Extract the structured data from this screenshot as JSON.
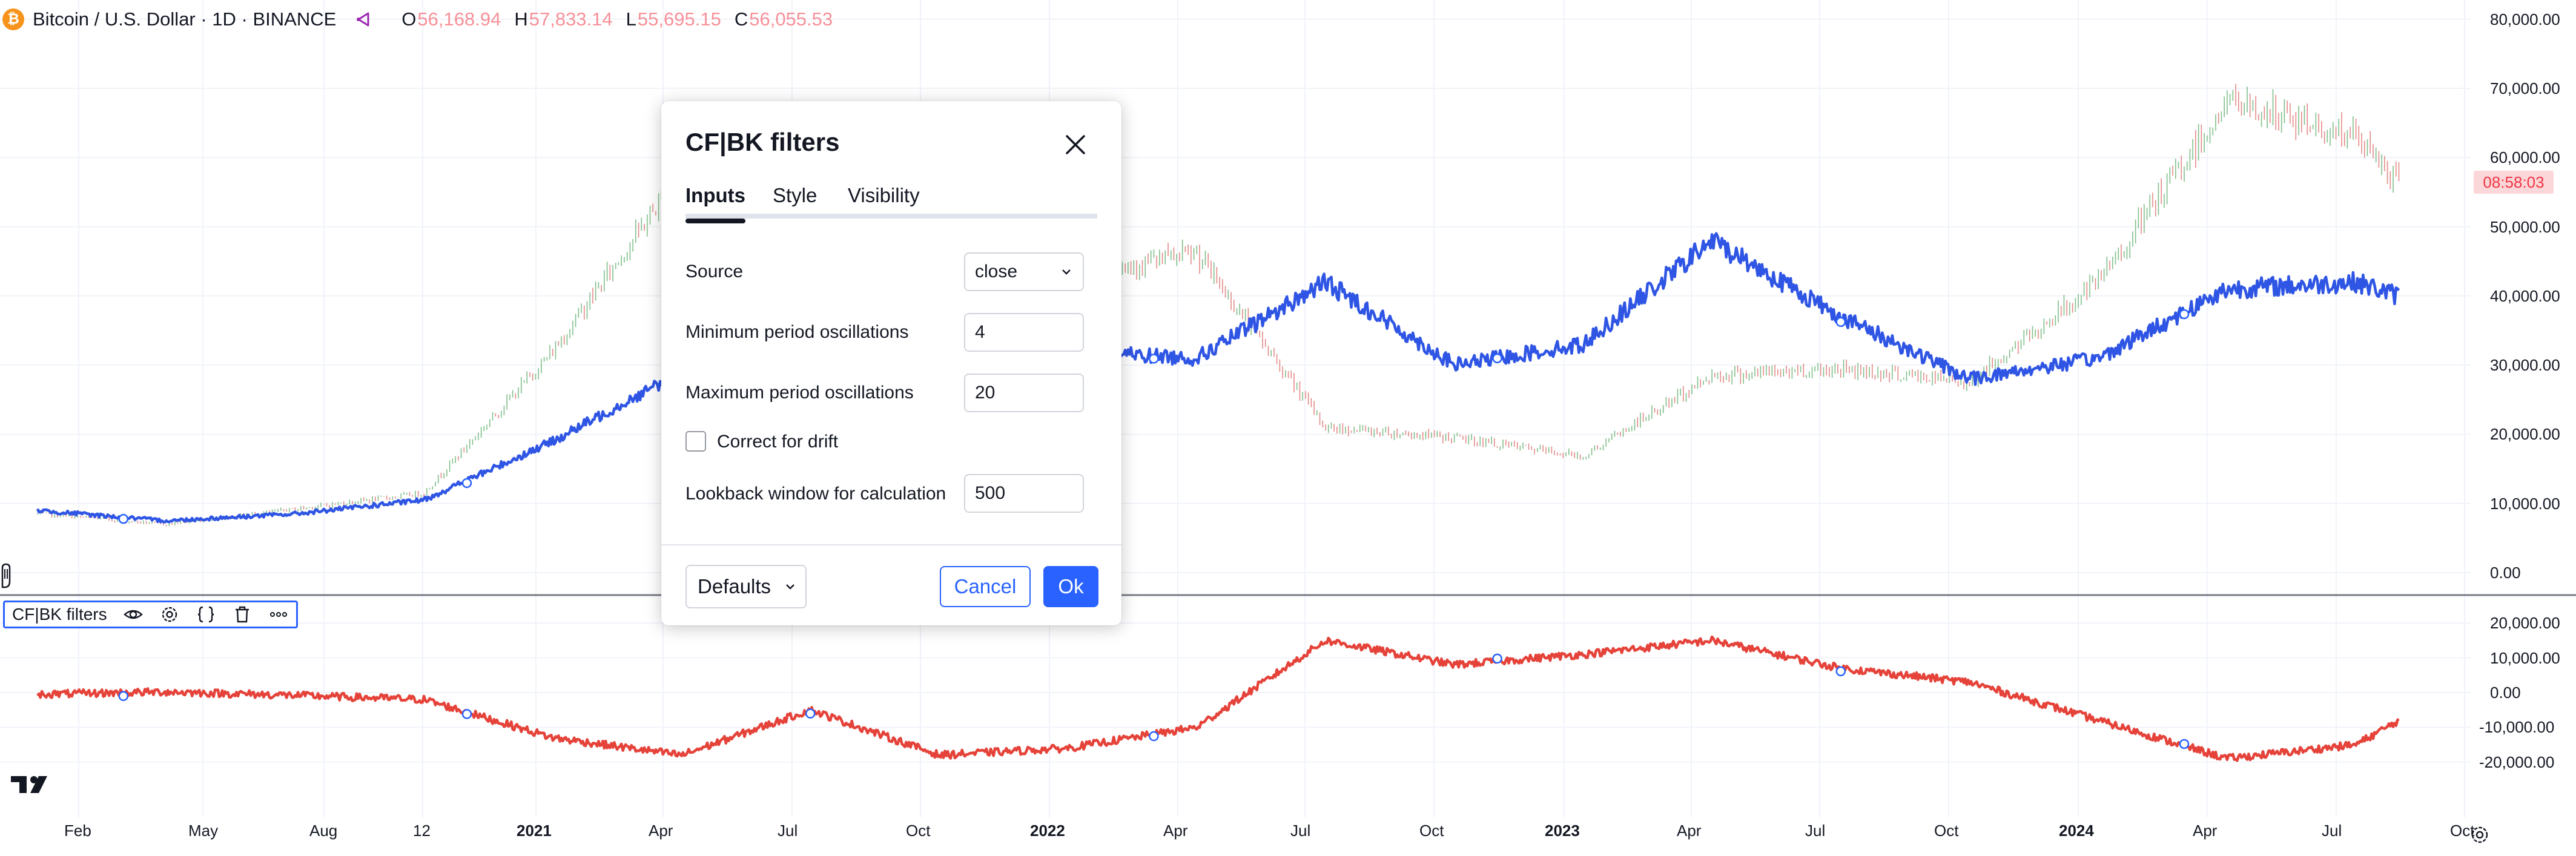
{
  "legend": {
    "symbol": "Bitcoin / U.S. Dollar · 1D · BINANCE",
    "open_key": "O",
    "open": "56,168.94",
    "high_key": "H",
    "high": "57,833.14",
    "low_key": "L",
    "low": "55,695.15",
    "close_key": "C",
    "close": "56,055.53"
  },
  "price_axis": {
    "labels": [
      "80,000.00",
      "70,000.00",
      "60,000.00",
      "50,000.00",
      "40,000.00",
      "30,000.00",
      "20,000.00",
      "10,000.00",
      "0.00"
    ],
    "current_time_tag": "08:58:03"
  },
  "osc_axis": {
    "labels": [
      "20,000.00",
      "10,000.00",
      "0.00",
      "-10,000.00",
      "-20,000.00"
    ]
  },
  "time_axis": {
    "labels": [
      {
        "text": "Feb",
        "bold": false
      },
      {
        "text": "May",
        "bold": false
      },
      {
        "text": "Aug",
        "bold": false
      },
      {
        "text": "12",
        "bold": false
      },
      {
        "text": "2021",
        "bold": true
      },
      {
        "text": "Apr",
        "bold": false
      },
      {
        "text": "Jul",
        "bold": false
      },
      {
        "text": "Oct",
        "bold": false
      },
      {
        "text": "2022",
        "bold": true
      },
      {
        "text": "Apr",
        "bold": false
      },
      {
        "text": "Jul",
        "bold": false
      },
      {
        "text": "Oct",
        "bold": false
      },
      {
        "text": "2023",
        "bold": true
      },
      {
        "text": "Apr",
        "bold": false
      },
      {
        "text": "Jul",
        "bold": false
      },
      {
        "text": "Oct",
        "bold": false
      },
      {
        "text": "2024",
        "bold": true
      },
      {
        "text": "Apr",
        "bold": false
      },
      {
        "text": "Jul",
        "bold": false
      },
      {
        "text": "Oct",
        "bold": false
      }
    ]
  },
  "indicator_pane": {
    "name": "CF|BK filters",
    "icons": [
      "eye-icon",
      "gear-icon",
      "source-code-icon",
      "trash-icon",
      "more-icon"
    ]
  },
  "dialog": {
    "title": "CF|BK filters",
    "tabs": [
      "Inputs",
      "Style",
      "Visibility"
    ],
    "active_tab": "Inputs",
    "inputs": {
      "source_label": "Source",
      "source_value": "close",
      "min_period_label": "Minimum period oscillations",
      "min_period_value": "4",
      "max_period_label": "Maximum period oscillations",
      "max_period_value": "20",
      "drift_label": "Correct for drift",
      "drift_checked": false,
      "lookback_label": "Lookback window for calculation",
      "lookback_value": "500"
    },
    "defaults_label": "Defaults",
    "cancel_label": "Cancel",
    "ok_label": "Ok"
  },
  "colors": {
    "filter_line": "#2f55e4",
    "oscillator_line": "#e5433a",
    "candle_up": "#7fbf8a",
    "candle_down": "#e38a88",
    "accent": "#2962ff"
  },
  "chart_data": [
    {
      "type": "line",
      "title": "",
      "series": [
        {
          "values_kind": "price_candles_approx",
          "x": [
            "2020-01",
            "2020-04",
            "2020-07",
            "2020-10",
            "2021-01",
            "2021-04",
            "2021-07",
            "2021-10",
            "2022-01",
            "2022-04",
            "2022-07",
            "2022-10",
            "2023-01",
            "2023-04",
            "2023-07",
            "2023-10",
            "2024-01",
            "2024-04",
            "2024-07",
            "2024-08"
          ],
          "values": [
            8500,
            7000,
            9200,
            11500,
            32000,
            58000,
            34000,
            61000,
            43000,
            46000,
            21000,
            19500,
            16800,
            28500,
            29500,
            27500,
            42000,
            68000,
            63000,
            56055
          ]
        },
        {
          "values_kind": "filter",
          "x": [
            "2020-01",
            "2020-04",
            "2020-07",
            "2020-10",
            "2021-01",
            "2021-04",
            "2021-07",
            "2021-10",
            "2022-01",
            "2022-04",
            "2022-07",
            "2022-10",
            "2023-01",
            "2023-04",
            "2023-07",
            "2023-10",
            "2024-01",
            "2024-04",
            "2024-07",
            "2024-08"
          ],
          "values": [
            9000,
            7500,
            8500,
            10500,
            19000,
            29000,
            27000,
            34000,
            32000,
            31000,
            42000,
            30000,
            33000,
            48000,
            37000,
            28000,
            31000,
            41000,
            42000,
            40000
          ]
        }
      ],
      "ylim": [
        0,
        80000
      ]
    },
    {
      "type": "line",
      "title": "",
      "series": [
        {
          "values_kind": "oscillator",
          "x": [
            "2020-01",
            "2020-04",
            "2020-07",
            "2020-10",
            "2021-01",
            "2021-04",
            "2021-07",
            "2021-10",
            "2022-01",
            "2022-04",
            "2022-07",
            "2022-10",
            "2023-01",
            "2023-04",
            "2023-07",
            "2023-10",
            "2024-01",
            "2024-04",
            "2024-07",
            "2024-08"
          ],
          "values": [
            -500,
            200,
            -800,
            -2000,
            -13000,
            -18000,
            -5000,
            -18000,
            -16000,
            -10000,
            15000,
            8000,
            11000,
            15000,
            7000,
            3000,
            -8000,
            -19000,
            -15000,
            -8000
          ]
        }
      ],
      "ylim": [
        -25000,
        22000
      ]
    }
  ]
}
